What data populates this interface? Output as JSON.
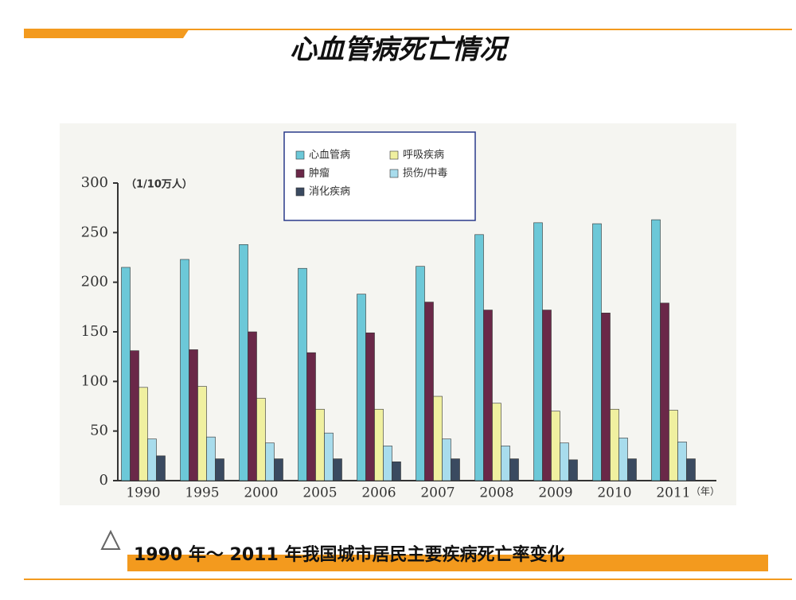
{
  "title": "心血管病死亡情况",
  "caption": "1990 年～  2011 年我国城市居民主要疾病死亡率变化",
  "chart_data": {
    "type": "bar",
    "y_label": "（1/10万人）",
    "x_label": "（年）",
    "categories": [
      "1990",
      "1995",
      "2000",
      "2005",
      "2006",
      "2007",
      "2008",
      "2009",
      "2010",
      "2011"
    ],
    "series": [
      {
        "name": "心血管病",
        "color": "#6cc8d8",
        "values": [
          215,
          223,
          238,
          214,
          188,
          216,
          248,
          260,
          259,
          263
        ]
      },
      {
        "name": "肿瘤",
        "color": "#6a2848",
        "values": [
          131,
          132,
          150,
          129,
          149,
          180,
          172,
          172,
          169,
          179
        ]
      },
      {
        "name": "呼吸疾病",
        "color": "#f0f0a0",
        "values": [
          94,
          95,
          83,
          72,
          72,
          85,
          78,
          70,
          72,
          71
        ]
      },
      {
        "name": "损伤/中毒",
        "color": "#a8dcec",
        "values": [
          42,
          44,
          38,
          48,
          35,
          42,
          35,
          38,
          43,
          39
        ]
      },
      {
        "name": "消化疾病",
        "color": "#3a4a60",
        "values": [
          25,
          22,
          22,
          22,
          19,
          22,
          22,
          21,
          22,
          22
        ]
      }
    ],
    "ylim": [
      0,
      300
    ],
    "yticks": [
      0,
      50,
      100,
      150,
      200,
      250,
      300
    ],
    "grid": false
  }
}
